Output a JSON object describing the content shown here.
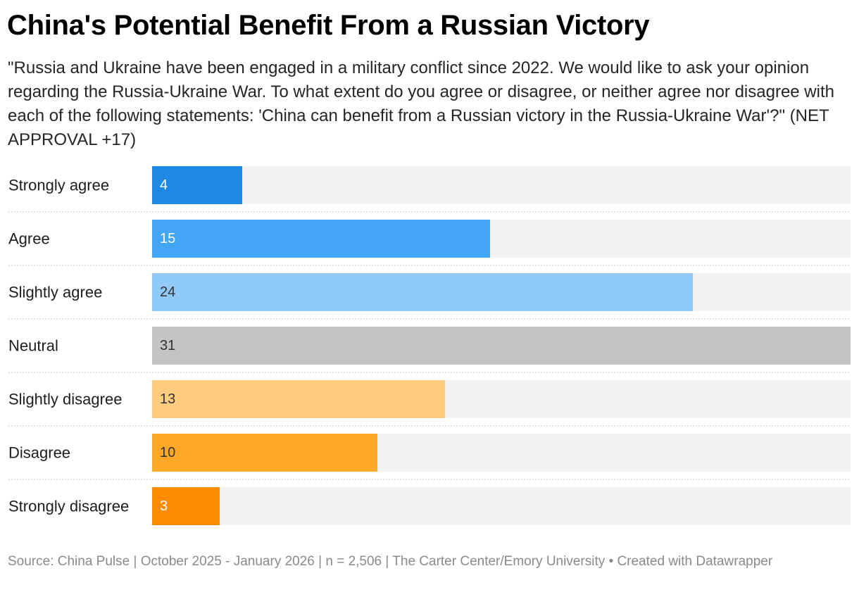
{
  "chart_data": {
    "type": "bar",
    "orientation": "horizontal",
    "title": "China's Potential Benefit From a Russian Victory",
    "subtitle": "\"Russia and Ukraine have been engaged in a military conflict since 2022. We would like to ask your opinion regarding the Russia-Ukraine War. To what extent do you agree or disagree, or neither agree nor disagree with each of the following statements: 'China can benefit from a Russian victory in the Russia-Ukraine War'?\" (NET APPROVAL +17)",
    "categories": [
      "Strongly agree",
      "Agree",
      "Slightly agree",
      "Neutral",
      "Slightly disagree",
      "Disagree",
      "Strongly disagree"
    ],
    "values": [
      4,
      15,
      24,
      31,
      13,
      10,
      3
    ],
    "xlim": [
      0,
      31
    ],
    "colors": [
      "#1e88e5",
      "#42a5f5",
      "#90caf9",
      "#c4c4c4",
      "#ffcc80",
      "#ffa726",
      "#fb8c00"
    ],
    "label_colors": [
      "#ffffff",
      "#ffffff",
      "#333333",
      "#333333",
      "#333333",
      "#333333",
      "#ffffff"
    ],
    "track_color": "#f2f2f2",
    "grid": false,
    "legend": "none",
    "source": "Source: China Pulse | October 2025 - January 2026 | n = 2,506 | The Carter Center/Emory University • Created with Datawrapper"
  }
}
